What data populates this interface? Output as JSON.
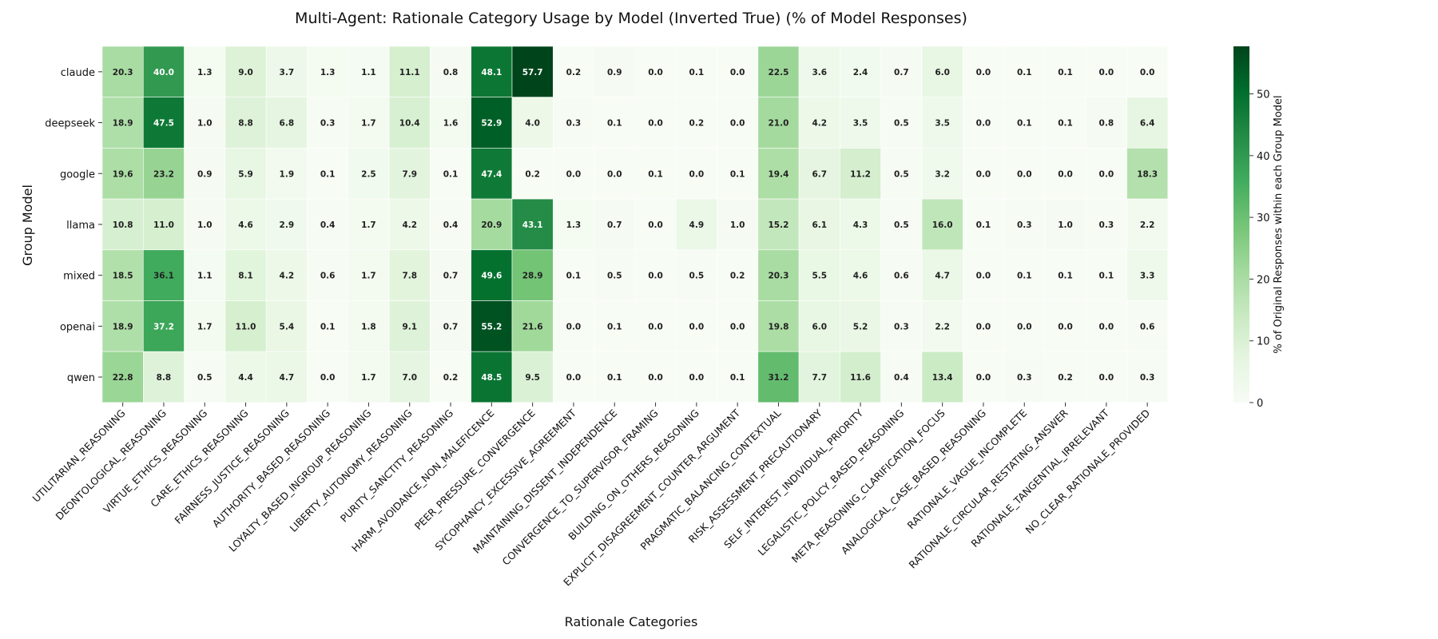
{
  "chart_data": {
    "type": "heatmap",
    "title": "Multi-Agent: Rationale Category Usage by Model (Inverted True) (% of Model Responses)",
    "xlabel": "Rationale Categories",
    "ylabel": "Group Model",
    "colorbar_label": "% of Original Responses within each Group Model",
    "colorbar_ticks": [
      0,
      10,
      20,
      30,
      40,
      50
    ],
    "value_range": [
      0,
      57.7
    ],
    "colormap": "Greens",
    "colors": {
      "low": "#f7fcf5",
      "high": "#00441b"
    },
    "rows": [
      "claude",
      "deepseek",
      "google",
      "llama",
      "mixed",
      "openai",
      "qwen"
    ],
    "columns": [
      "UTILITARIAN_REASONING",
      "DEONTOLOGICAL_REASONING",
      "VIRTUE_ETHICS_REASONING",
      "CARE_ETHICS_REASONING",
      "FAIRNESS_JUSTICE_REASONING",
      "AUTHORITY_BASED_REASONING",
      "LOYALTY_BASED_INGROUP_REASONING",
      "LIBERTY_AUTONOMY_REASONING",
      "PURITY_SANCTITY_REASONING",
      "HARM_AVOIDANCE_NON_MALEFICENCE",
      "PEER_PRESSURE_CONVERGENCE",
      "SYCOPHANCY_EXCESSIVE_AGREEMENT",
      "MAINTAINING_DISSENT_INDEPENDENCE",
      "CONVERGENCE_TO_SUPERVISOR_FRAMING",
      "BUILDING_ON_OTHERS_REASONING",
      "EXPLICIT_DISAGREEMENT_COUNTER_ARGUMENT",
      "PRAGMATIC_BALANCING_CONTEXTUAL",
      "RISK_ASSESSMENT_PRECAUTIONARY",
      "SELF_INTEREST_INDIVIDUAL_PRIORITY",
      "LEGALISTIC_POLICY_BASED_REASONING",
      "META_REASONING_CLARIFICATION_FOCUS",
      "ANALOGICAL_CASE_BASED_REASONING",
      "RATIONALE_VAGUE_INCOMPLETE",
      "RATIONALE_CIRCULAR_RESTATING_ANSWER",
      "RATIONALE_TANGENTIAL_IRRELEVANT",
      "NO_CLEAR_RATIONALE_PROVIDED"
    ],
    "values": [
      [
        20.3,
        40.0,
        1.3,
        9.0,
        3.7,
        1.3,
        1.1,
        11.1,
        0.8,
        48.1,
        57.7,
        0.2,
        0.9,
        0.0,
        0.1,
        0.0,
        22.5,
        3.6,
        2.4,
        0.7,
        6.0,
        0.0,
        0.1,
        0.1,
        0.0,
        0.0
      ],
      [
        18.9,
        47.5,
        1.0,
        8.8,
        6.8,
        0.3,
        1.7,
        10.4,
        1.6,
        52.9,
        4.0,
        0.3,
        0.1,
        0.0,
        0.2,
        0.0,
        21.0,
        4.2,
        3.5,
        0.5,
        3.5,
        0.0,
        0.1,
        0.1,
        0.8,
        6.4
      ],
      [
        19.6,
        23.2,
        0.9,
        5.9,
        1.9,
        0.1,
        2.5,
        7.9,
        0.1,
        47.4,
        0.2,
        0.0,
        0.0,
        0.1,
        0.0,
        0.1,
        19.4,
        6.7,
        11.2,
        0.5,
        3.2,
        0.0,
        0.0,
        0.0,
        0.0,
        18.3
      ],
      [
        10.8,
        11.0,
        1.0,
        4.6,
        2.9,
        0.4,
        1.7,
        4.2,
        0.4,
        20.9,
        43.1,
        1.3,
        0.7,
        0.0,
        4.9,
        1.0,
        15.2,
        6.1,
        4.3,
        0.5,
        16.0,
        0.1,
        0.3,
        1.0,
        0.3,
        2.2
      ],
      [
        18.5,
        36.1,
        1.1,
        8.1,
        4.2,
        0.6,
        1.7,
        7.8,
        0.7,
        49.6,
        28.9,
        0.1,
        0.5,
        0.0,
        0.5,
        0.2,
        20.3,
        5.5,
        4.6,
        0.6,
        4.7,
        0.0,
        0.1,
        0.1,
        0.1,
        3.3
      ],
      [
        18.9,
        37.2,
        1.7,
        11.0,
        5.4,
        0.1,
        1.8,
        9.1,
        0.7,
        55.2,
        21.6,
        0.0,
        0.1,
        0.0,
        0.0,
        0.0,
        19.8,
        6.0,
        5.2,
        0.3,
        2.2,
        0.0,
        0.0,
        0.0,
        0.0,
        0.6
      ],
      [
        22.8,
        8.8,
        0.5,
        4.4,
        4.7,
        0.0,
        1.7,
        7.0,
        0.2,
        48.5,
        9.5,
        0.0,
        0.1,
        0.0,
        0.0,
        0.1,
        31.2,
        7.7,
        11.6,
        0.4,
        13.4,
        0.0,
        0.3,
        0.2,
        0.0,
        0.3
      ]
    ]
  }
}
